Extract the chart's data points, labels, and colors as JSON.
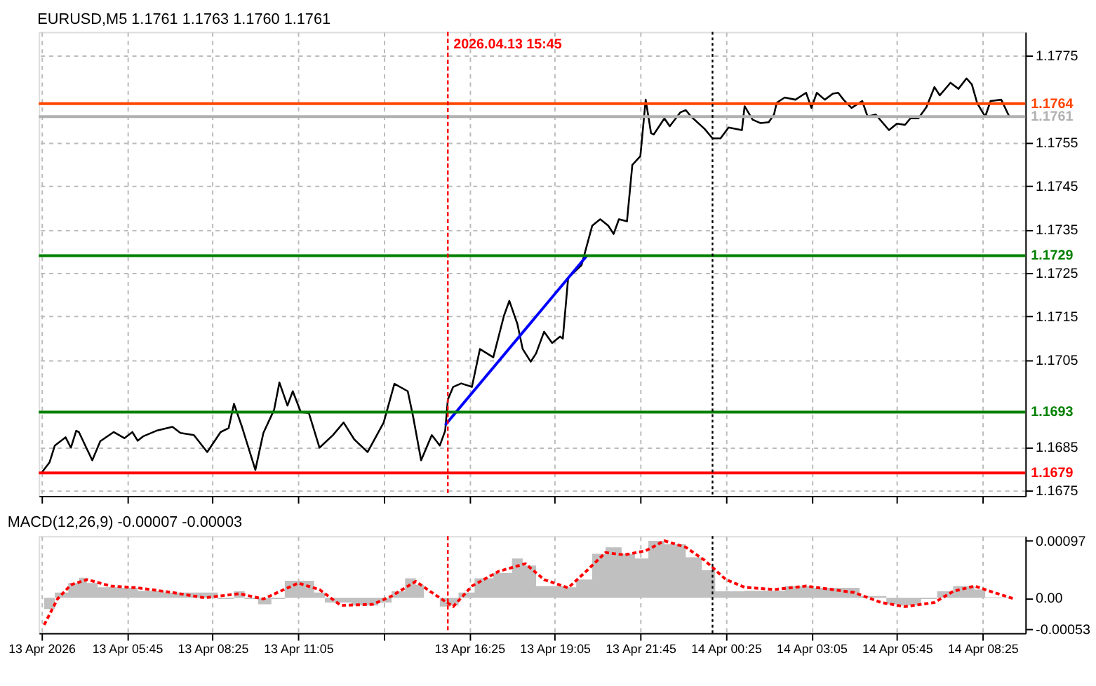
{
  "chart_data": [
    {
      "type": "line",
      "title": "EURUSD,M5 1.1761 1.1763 1.1760 1.1761",
      "xlim": [
        "2026-04-13T03:00",
        "2026-04-14T09:45"
      ],
      "ylim": [
        1.16737,
        1.17805
      ],
      "xticks": [
        {
          "value": "2026-04-13T03:05",
          "label": null
        },
        {
          "value": "2026-04-13T05:45",
          "label": null
        },
        {
          "value": "2026-04-13T08:25",
          "label": null
        },
        {
          "value": "2026-04-13T11:05",
          "label": null
        },
        {
          "value": "2026-04-13T13:45",
          "label": null
        },
        {
          "value": "2026-04-13T16:25",
          "label": null
        },
        {
          "value": "2026-04-13T19:05",
          "label": null
        },
        {
          "value": "2026-04-13T21:45",
          "label": null
        },
        {
          "value": "2026-04-14T00:25",
          "label": null
        },
        {
          "value": "2026-04-14T03:05",
          "label": null
        },
        {
          "value": "2026-04-14T05:45",
          "label": null
        },
        {
          "value": "2026-04-14T08:25",
          "label": null
        }
      ],
      "yticks": [
        1.1775,
        1.1755,
        1.1745,
        1.1735,
        1.1725,
        1.1715,
        1.1705,
        1.1685,
        1.1675
      ],
      "tick_labels": "y",
      "grid": true,
      "series": [
        {
          "color": "#000000",
          "x": [
            "2026-04-13T03:05",
            "2026-04-13T03:20",
            "2026-04-13T03:30",
            "2026-04-13T03:50",
            "2026-04-13T04:00",
            "2026-04-13T04:10",
            "2026-04-13T04:15",
            "2026-04-13T04:40",
            "2026-04-13T04:55",
            "2026-04-13T05:20",
            "2026-04-13T05:40",
            "2026-04-13T05:55",
            "2026-04-13T06:05",
            "2026-04-13T06:15",
            "2026-04-13T06:40",
            "2026-04-13T07:10",
            "2026-04-13T07:25",
            "2026-04-13T07:50",
            "2026-04-13T08:15",
            "2026-04-13T08:40",
            "2026-04-13T08:55",
            "2026-04-13T09:05",
            "2026-04-13T09:20",
            "2026-04-13T09:45",
            "2026-04-13T10:00",
            "2026-04-13T10:20",
            "2026-04-13T10:30",
            "2026-04-13T10:45",
            "2026-04-13T10:55",
            "2026-04-13T11:10",
            "2026-04-13T11:25",
            "2026-04-13T11:45",
            "2026-04-13T12:10",
            "2026-04-13T12:30",
            "2026-04-13T12:50",
            "2026-04-13T13:15",
            "2026-04-13T13:45",
            "2026-04-13T14:05",
            "2026-04-13T14:30",
            "2026-04-13T14:40",
            "2026-04-13T14:55",
            "2026-04-13T15:15",
            "2026-04-13T15:30",
            "2026-04-13T15:40",
            "2026-04-13T15:45",
            "2026-04-13T15:55",
            "2026-04-13T16:10",
            "2026-04-13T16:30",
            "2026-04-13T16:45",
            "2026-04-13T17:10",
            "2026-04-13T17:30",
            "2026-04-13T17:40",
            "2026-04-13T17:55",
            "2026-04-13T18:05",
            "2026-04-13T18:20",
            "2026-04-13T18:30",
            "2026-04-13T18:45",
            "2026-04-13T19:00",
            "2026-04-13T19:15",
            "2026-04-13T19:20",
            "2026-04-13T19:30",
            "2026-04-13T19:55",
            "2026-04-13T20:15",
            "2026-04-13T20:30",
            "2026-04-13T20:45",
            "2026-04-13T20:55",
            "2026-04-13T21:05",
            "2026-04-13T21:20",
            "2026-04-13T21:30",
            "2026-04-13T21:45",
            "2026-04-13T21:55",
            "2026-04-13T22:05",
            "2026-04-13T22:10",
            "2026-04-13T22:30",
            "2026-04-13T22:40",
            "2026-04-13T23:00",
            "2026-04-13T23:10",
            "2026-04-13T23:20",
            "2026-04-13T23:45",
            "2026-04-14T00:00",
            "2026-04-14T00:15",
            "2026-04-14T00:30",
            "2026-04-14T00:55",
            "2026-04-14T01:00",
            "2026-04-14T01:15",
            "2026-04-14T01:30",
            "2026-04-14T01:45",
            "2026-04-14T01:55",
            "2026-04-14T02:00",
            "2026-04-14T02:15",
            "2026-04-14T02:35",
            "2026-04-14T02:55",
            "2026-04-14T03:05",
            "2026-04-14T03:15",
            "2026-04-14T03:30",
            "2026-04-14T03:45",
            "2026-04-14T03:55",
            "2026-04-14T04:05",
            "2026-04-14T04:20",
            "2026-04-14T04:40",
            "2026-04-14T04:50",
            "2026-04-14T05:05",
            "2026-04-14T05:30",
            "2026-04-14T05:45",
            "2026-04-14T06:00",
            "2026-04-14T06:10",
            "2026-04-14T06:25",
            "2026-04-14T06:40",
            "2026-04-14T06:55",
            "2026-04-14T07:05",
            "2026-04-14T07:25",
            "2026-04-14T07:40",
            "2026-04-14T07:55",
            "2026-04-14T08:05",
            "2026-04-14T08:15",
            "2026-04-14T08:30",
            "2026-04-14T08:40",
            "2026-04-14T09:00",
            "2026-04-14T09:15"
          ],
          "values": [
            1.1679,
            1.16814,
            1.16853,
            1.16872,
            1.16848,
            1.16887,
            1.16884,
            1.16819,
            1.16863,
            1.16884,
            1.1687,
            1.16884,
            1.16864,
            1.16874,
            1.16887,
            1.16896,
            1.16882,
            1.16877,
            1.16838,
            1.16884,
            1.16893,
            1.16949,
            1.16896,
            1.16797,
            1.16882,
            1.16935,
            1.16998,
            1.16945,
            1.16978,
            1.1693,
            1.16928,
            1.16848,
            1.16877,
            1.16906,
            1.16867,
            1.16838,
            1.16906,
            1.16995,
            1.16978,
            1.1692,
            1.16819,
            1.16877,
            1.16853,
            1.16887,
            1.16959,
            1.16988,
            1.16996,
            1.16988,
            1.17075,
            1.17056,
            1.17152,
            1.17186,
            1.17133,
            1.17075,
            1.17046,
            1.17065,
            1.17115,
            1.17089,
            1.17104,
            1.17099,
            1.17239,
            1.17268,
            1.17359,
            1.17374,
            1.17359,
            1.1734,
            1.17374,
            1.17369,
            1.17499,
            1.17519,
            1.17649,
            1.17572,
            1.17569,
            1.17606,
            1.17588,
            1.1762,
            1.17625,
            1.1761,
            1.17582,
            1.1756,
            1.1756,
            1.17585,
            1.17579,
            1.17634,
            1.17603,
            1.17595,
            1.17597,
            1.17615,
            1.17642,
            1.17654,
            1.17649,
            1.17665,
            1.1763,
            1.17665,
            1.17649,
            1.17663,
            1.17665,
            1.17649,
            1.1763,
            1.17646,
            1.1761,
            1.17615,
            1.17579,
            1.17594,
            1.17591,
            1.17606,
            1.17606,
            1.17632,
            1.17678,
            1.17659,
            1.17688,
            1.17674,
            1.17698,
            1.17684,
            1.17641,
            1.1761,
            1.17646,
            1.17649,
            1.1761
          ]
        },
        {
          "type": "line",
          "color": "#0000ff",
          "x": [
            "2026-04-13T15:40",
            "2026-04-13T20:05"
          ],
          "values": [
            1.169,
            1.1729
          ]
        }
      ],
      "ref_lines": [
        {
          "axis": "y",
          "value": 1.1764,
          "label": "1.1764",
          "color": "#ff4500",
          "line_style": "solid"
        },
        {
          "axis": "y",
          "value": 1.1761,
          "label": "1.1761",
          "color": "#b0b0b0",
          "line_style": "solid"
        },
        {
          "axis": "y",
          "value": 1.1729,
          "label": "1.1729",
          "color": "#008000",
          "line_style": "solid"
        },
        {
          "axis": "y",
          "value": 1.1693,
          "label": "1.1693",
          "color": "#008000",
          "line_style": "solid"
        },
        {
          "axis": "y",
          "value": 1.1679,
          "label": "1.1679",
          "color": "#ff0000",
          "line_style": "solid"
        },
        {
          "axis": "x",
          "value": "2026-04-13T15:45",
          "label": "2026.04.13 15:45",
          "color": "#ff0000",
          "line_style": "dashed"
        },
        {
          "axis": "x",
          "value": "2026-04-14T00:00",
          "color": "#000000",
          "line_style": "dotted"
        }
      ]
    },
    {
      "type": "area",
      "title": "MACD(12,26,9) -0.00007 -0.00003",
      "xlim": [
        "2026-04-13T03:00",
        "2026-04-14T09:45"
      ],
      "ylim": [
        -0.0006,
        0.00105
      ],
      "xticks": [
        {
          "value": "2026-04-13T03:05",
          "label": "13 Apr 2026"
        },
        {
          "value": "2026-04-13T05:45",
          "label": "13 Apr 05:45"
        },
        {
          "value": "2026-04-13T08:25",
          "label": "13 Apr 08:25"
        },
        {
          "value": "2026-04-13T11:05",
          "label": "13 Apr 11:05"
        },
        {
          "value": "2026-04-13T13:45",
          "label": null
        },
        {
          "value": "2026-04-13T16:25",
          "label": "13 Apr 16:25"
        },
        {
          "value": "2026-04-13T19:05",
          "label": "13 Apr 19:05"
        },
        {
          "value": "2026-04-13T21:45",
          "label": "13 Apr 21:45"
        },
        {
          "value": "2026-04-14T00:25",
          "label": "14 Apr 00:25"
        },
        {
          "value": "2026-04-14T03:05",
          "label": "14 Apr 03:05"
        },
        {
          "value": "2026-04-14T05:45",
          "label": "14 Apr 05:45"
        },
        {
          "value": "2026-04-14T08:25",
          "label": "14 Apr 08:25"
        }
      ],
      "yticks": [
        {
          "value": 0.00097,
          "label": "0.00097"
        },
        {
          "value": 0.0,
          "label": "0.00"
        },
        {
          "value": -0.00053,
          "label": "-0.00053"
        }
      ],
      "grid": "x",
      "series": [
        {
          "color": "#c0c0c0",
          "x": [
            "2026-04-13T03:10",
            "2026-04-13T03:30",
            "2026-04-13T03:55",
            "2026-04-13T04:15",
            "2026-04-13T04:30",
            "2026-04-13T04:50",
            "2026-04-13T05:30",
            "2026-04-13T06:05",
            "2026-04-13T06:55",
            "2026-04-13T08:00",
            "2026-04-13T08:35",
            "2026-04-13T09:05",
            "2026-04-13T09:25",
            "2026-04-13T09:50",
            "2026-04-13T10:15",
            "2026-04-13T10:40",
            "2026-04-13T11:05",
            "2026-04-13T11:35",
            "2026-04-13T11:55",
            "2026-04-13T12:45",
            "2026-04-13T13:35",
            "2026-04-13T14:00",
            "2026-04-13T14:25",
            "2026-04-13T14:45",
            "2026-04-13T15:00",
            "2026-04-13T15:30",
            "2026-04-13T15:50",
            "2026-04-13T16:05",
            "2026-04-13T16:35",
            "2026-04-13T17:10",
            "2026-04-13T17:45",
            "2026-04-13T18:05",
            "2026-04-13T18:30",
            "2026-04-13T19:25",
            "2026-04-13T19:45",
            "2026-04-13T20:15",
            "2026-04-13T20:40",
            "2026-04-13T21:10",
            "2026-04-13T21:35",
            "2026-04-13T22:00",
            "2026-04-13T22:30",
            "2026-04-13T23:10",
            "2026-04-13T23:40",
            "2026-04-14T00:05",
            "2026-04-14T01:00",
            "2026-04-14T02:15",
            "2026-04-14T03:10",
            "2026-04-14T04:35",
            "2026-04-14T05:25",
            "2026-04-14T05:50",
            "2026-04-14T06:30",
            "2026-04-14T07:00",
            "2026-04-14T07:30",
            "2026-04-14T08:10",
            "2026-04-14T08:30",
            "2026-04-14T09:15"
          ],
          "values": [
            -0.00019,
            9e-05,
            0.00025,
            0.00034,
            0.00025,
            0.00018,
            0.00017,
            0.00012,
            9e-05,
            9e-05,
            -2e-05,
            0.00011,
            -2e-05,
            -0.00011,
            -2e-05,
            0.00029,
            0.00029,
            9e-05,
            -8e-05,
            -0.00013,
            -8e-05,
            0.00011,
            0.00033,
            0.00022,
            0.0,
            -0.00015,
            -0.00013,
            9e-05,
            0.00033,
            0.00042,
            0.00067,
            0.00055,
            0.0002,
            0.00018,
            0.00031,
            0.00075,
            0.00086,
            0.00075,
            0.00067,
            0.00097,
            0.00091,
            0.00069,
            0.00047,
            0.00011,
            0.00012,
            0.0002,
            0.00017,
            3e-05,
            -0.00011,
            -0.00013,
            -2e-05,
            0.00011,
            0.0002,
            0.00014,
            1e-05,
            -4e-05
          ]
        },
        {
          "type": "line",
          "color": "#ff0000",
          "line_style": "dashed",
          "x": [
            "2026-04-13T03:10",
            "2026-04-13T03:35",
            "2026-04-13T04:00",
            "2026-04-13T04:30",
            "2026-04-13T05:15",
            "2026-04-13T06:05",
            "2026-04-13T07:10",
            "2026-04-13T08:10",
            "2026-04-13T09:15",
            "2026-04-13T10:00",
            "2026-04-13T11:05",
            "2026-04-13T11:45",
            "2026-04-13T12:25",
            "2026-04-13T13:25",
            "2026-04-13T14:00",
            "2026-04-13T14:45",
            "2026-04-13T15:15",
            "2026-04-13T15:55",
            "2026-04-13T16:30",
            "2026-04-13T17:20",
            "2026-04-13T18:10",
            "2026-04-13T18:45",
            "2026-04-13T19:30",
            "2026-04-13T20:00",
            "2026-04-13T20:40",
            "2026-04-13T21:15",
            "2026-04-13T21:55",
            "2026-04-13T22:30",
            "2026-04-13T23:10",
            "2026-04-13T23:45",
            "2026-04-14T00:25",
            "2026-04-14T01:00",
            "2026-04-14T01:55",
            "2026-04-14T02:55",
            "2026-04-14T04:25",
            "2026-04-14T05:15",
            "2026-04-14T06:00",
            "2026-04-14T06:55",
            "2026-04-14T07:30",
            "2026-04-14T08:10",
            "2026-04-14T08:40",
            "2026-04-14T09:25"
          ],
          "values": [
            -0.00046,
            -2e-05,
            0.00022,
            0.00031,
            0.0002,
            0.00017,
            9e-05,
            0.0,
            7e-05,
            -2e-05,
            0.00025,
            0.00014,
            -0.00013,
            -0.00011,
            3e-05,
            0.00028,
            9e-05,
            -0.00015,
            0.0002,
            0.00045,
            0.00058,
            0.00031,
            0.00017,
            0.00042,
            0.00077,
            0.00073,
            0.0008,
            0.00097,
            0.00086,
            0.00064,
            0.00031,
            0.00018,
            0.00014,
            0.0002,
            9e-05,
            -8e-05,
            -0.00015,
            -8e-05,
            0.00011,
            0.0002,
            0.00011,
            -2e-05
          ]
        }
      ],
      "ref_lines": [
        {
          "axis": "x",
          "value": "2026-04-13T15:45",
          "color": "#ff0000",
          "line_style": "dashed"
        },
        {
          "axis": "x",
          "value": "2026-04-14T00:00",
          "color": "#000000",
          "line_style": "dotted"
        }
      ]
    }
  ]
}
